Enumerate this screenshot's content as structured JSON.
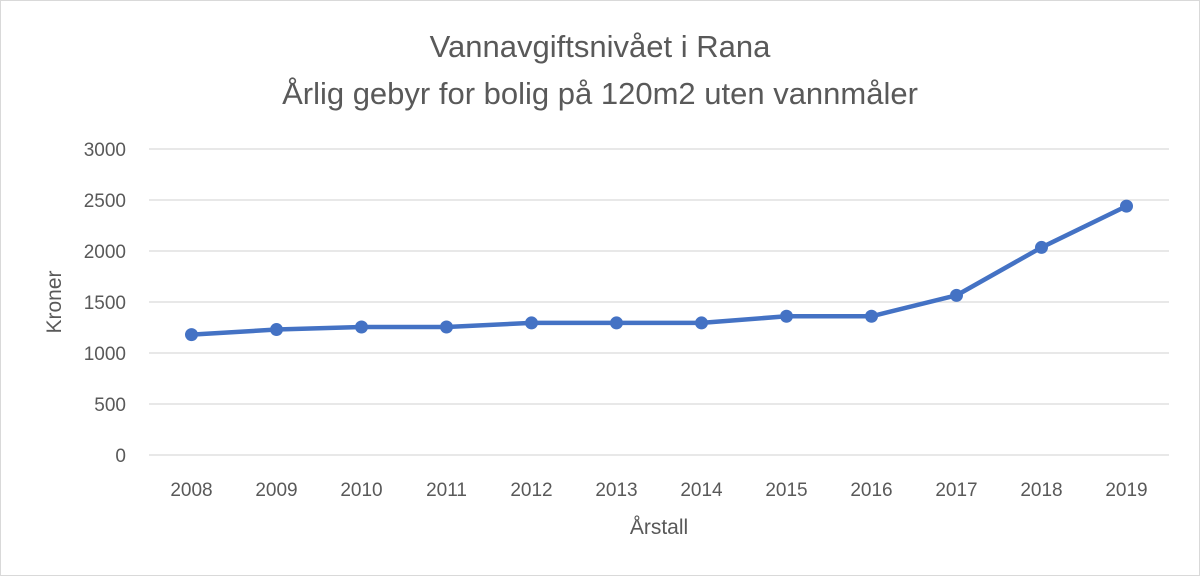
{
  "chart_data": {
    "type": "line",
    "title": [
      "Vannavgiftsnivået i Rana",
      "Årlig gebyr for bolig på 120m2 uten vannmåler"
    ],
    "xlabel": "Årstall",
    "ylabel": "Kroner",
    "categories": [
      "2008",
      "2009",
      "2010",
      "2011",
      "2012",
      "2013",
      "2014",
      "2015",
      "2016",
      "2017",
      "2018",
      "2019"
    ],
    "series": [
      {
        "values": [
          1180,
          1230,
          1255,
          1255,
          1295,
          1295,
          1295,
          1360,
          1360,
          1565,
          2035,
          2440
        ],
        "color": "#4472c4"
      }
    ],
    "ylim": [
      0,
      3000
    ],
    "yticks": [
      0,
      500,
      1000,
      1500,
      2000,
      2500,
      3000
    ],
    "grid": true,
    "legend": "none"
  }
}
